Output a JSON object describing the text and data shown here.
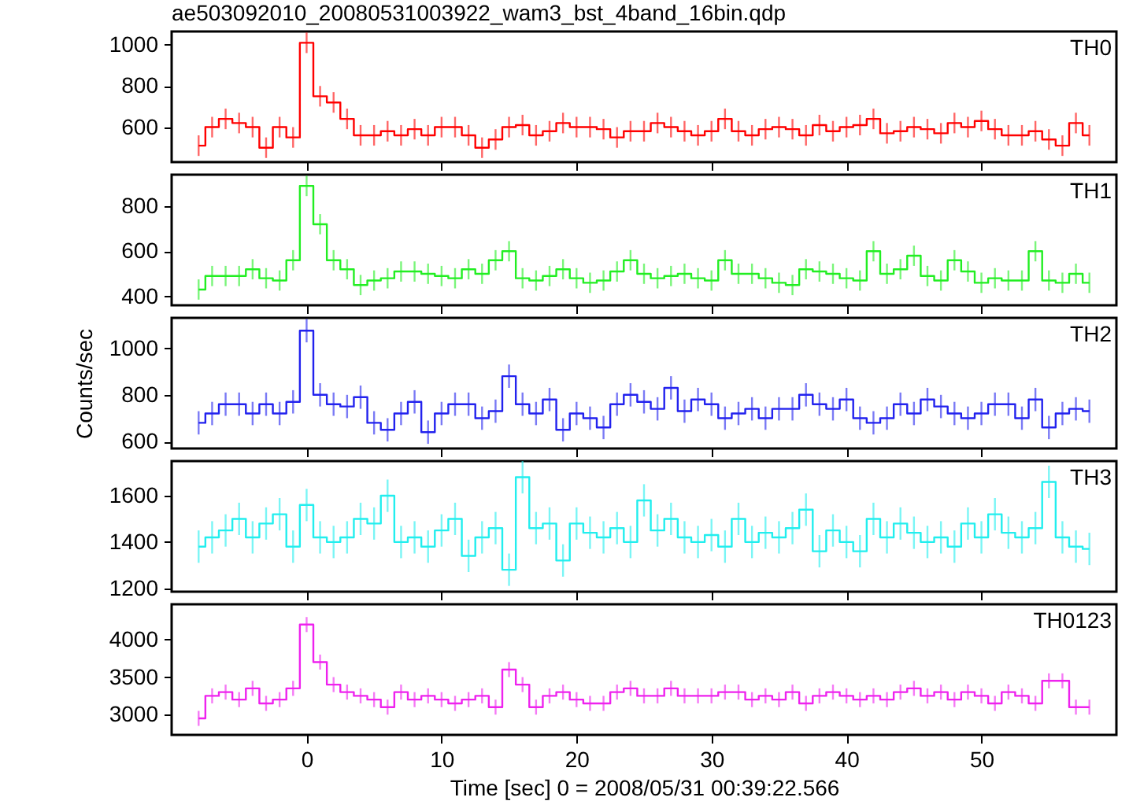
{
  "chart_data": [
    {
      "type": "step",
      "title": "ae503092010_20080531003922_wam3_bst_4band_16bin.qdp",
      "annotations": [
        "TH0"
      ],
      "tick_labels": "y",
      "grid": false,
      "xlim": [
        -10,
        60
      ],
      "xticks": [
        0,
        10,
        20,
        30,
        40,
        50
      ],
      "ylim": [
        430,
        1065
      ],
      "yticks": [
        600,
        800,
        1000
      ],
      "x": [
        -8,
        -7,
        -6,
        -5,
        -4,
        -3,
        -2,
        -1,
        0,
        1,
        2,
        3,
        4,
        5,
        6,
        7,
        8,
        9,
        10,
        11,
        12,
        13,
        14,
        15,
        16,
        17,
        18,
        19,
        20,
        21,
        22,
        23,
        24,
        25,
        26,
        27,
        28,
        29,
        30,
        31,
        32,
        33,
        34,
        35,
        36,
        37,
        38,
        39,
        40,
        41,
        42,
        43,
        44,
        45,
        46,
        47,
        48,
        49,
        50,
        51,
        52,
        53,
        54,
        55,
        56,
        57,
        58
      ],
      "series": [
        {
          "color": "#ff0000",
          "values": [
            510,
            600,
            640,
            620,
            600,
            500,
            600,
            550,
            1010,
            750,
            720,
            640,
            560,
            560,
            580,
            560,
            590,
            560,
            600,
            600,
            560,
            500,
            540,
            600,
            610,
            560,
            580,
            620,
            600,
            600,
            590,
            550,
            580,
            580,
            620,
            600,
            580,
            560,
            580,
            640,
            580,
            560,
            590,
            600,
            590,
            560,
            610,
            580,
            600,
            610,
            640,
            570,
            580,
            600,
            590,
            570,
            620,
            600,
            630,
            590,
            560,
            560,
            580,
            540,
            510,
            620,
            560
          ],
          "errors": [
            50,
            50,
            50,
            50,
            50,
            50,
            50,
            50,
            50,
            50,
            50,
            50,
            50,
            50,
            50,
            50,
            50,
            50,
            50,
            50,
            50,
            50,
            50,
            50,
            50,
            50,
            50,
            50,
            50,
            50,
            50,
            50,
            50,
            50,
            50,
            50,
            50,
            50,
            50,
            50,
            50,
            50,
            50,
            50,
            50,
            50,
            50,
            50,
            50,
            50,
            50,
            50,
            50,
            50,
            50,
            50,
            50,
            50,
            50,
            50,
            50,
            50,
            50,
            50,
            50,
            50,
            50
          ]
        }
      ]
    },
    {
      "type": "step",
      "annotations": [
        "TH1"
      ],
      "tick_labels": "y",
      "grid": false,
      "xlim": [
        -10,
        60
      ],
      "xticks": [
        0,
        10,
        20,
        30,
        40,
        50
      ],
      "ylim": [
        360,
        940
      ],
      "yticks": [
        400,
        600,
        800
      ],
      "x": [
        -8,
        -7,
        -6,
        -5,
        -4,
        -3,
        -2,
        -1,
        0,
        1,
        2,
        3,
        4,
        5,
        6,
        7,
        8,
        9,
        10,
        11,
        12,
        13,
        14,
        15,
        16,
        17,
        18,
        19,
        20,
        21,
        22,
        23,
        24,
        25,
        26,
        27,
        28,
        29,
        30,
        31,
        32,
        33,
        34,
        35,
        36,
        37,
        38,
        39,
        40,
        41,
        42,
        43,
        44,
        45,
        46,
        47,
        48,
        49,
        50,
        51,
        52,
        53,
        54,
        55,
        56,
        57,
        58
      ],
      "series": [
        {
          "color": "#22ee22",
          "values": [
            430,
            490,
            490,
            490,
            520,
            480,
            470,
            560,
            890,
            720,
            560,
            520,
            450,
            470,
            480,
            510,
            510,
            500,
            490,
            480,
            520,
            500,
            560,
            600,
            480,
            470,
            490,
            520,
            480,
            460,
            470,
            510,
            560,
            500,
            480,
            490,
            500,
            480,
            470,
            560,
            500,
            500,
            480,
            460,
            450,
            520,
            510,
            500,
            480,
            470,
            600,
            500,
            520,
            580,
            490,
            470,
            560,
            510,
            460,
            480,
            470,
            470,
            600,
            470,
            460,
            500,
            460
          ],
          "errors": [
            45,
            45,
            45,
            45,
            45,
            45,
            45,
            45,
            45,
            45,
            45,
            45,
            45,
            45,
            45,
            45,
            45,
            45,
            45,
            45,
            45,
            45,
            45,
            45,
            45,
            45,
            45,
            45,
            45,
            45,
            45,
            45,
            45,
            45,
            45,
            45,
            45,
            45,
            45,
            45,
            45,
            45,
            45,
            45,
            45,
            45,
            45,
            45,
            45,
            45,
            45,
            45,
            45,
            45,
            45,
            45,
            45,
            45,
            45,
            45,
            45,
            45,
            45,
            45,
            45,
            45,
            45
          ]
        }
      ]
    },
    {
      "type": "step",
      "annotations": [
        "TH2"
      ],
      "ylabel": "Counts/sec",
      "tick_labels": "y",
      "grid": false,
      "xlim": [
        -10,
        60
      ],
      "xticks": [
        0,
        10,
        20,
        30,
        40,
        50
      ],
      "ylim": [
        570,
        1130
      ],
      "yticks": [
        600,
        800,
        1000
      ],
      "x": [
        -8,
        -7,
        -6,
        -5,
        -4,
        -3,
        -2,
        -1,
        0,
        1,
        2,
        3,
        4,
        5,
        6,
        7,
        8,
        9,
        10,
        11,
        12,
        13,
        14,
        15,
        16,
        17,
        18,
        19,
        20,
        21,
        22,
        23,
        24,
        25,
        26,
        27,
        28,
        29,
        30,
        31,
        32,
        33,
        34,
        35,
        36,
        37,
        38,
        39,
        40,
        41,
        42,
        43,
        44,
        45,
        46,
        47,
        48,
        49,
        50,
        51,
        52,
        53,
        54,
        55,
        56,
        57,
        58
      ],
      "series": [
        {
          "color": "#2222ee",
          "values": [
            680,
            720,
            760,
            760,
            720,
            760,
            720,
            770,
            1075,
            800,
            760,
            750,
            790,
            680,
            650,
            720,
            770,
            640,
            720,
            760,
            760,
            700,
            730,
            880,
            760,
            720,
            780,
            650,
            720,
            700,
            660,
            760,
            800,
            770,
            740,
            830,
            730,
            780,
            760,
            700,
            720,
            740,
            700,
            740,
            740,
            800,
            760,
            740,
            780,
            700,
            680,
            700,
            760,
            720,
            780,
            750,
            720,
            700,
            720,
            760,
            760,
            700,
            780,
            660,
            720,
            740,
            730
          ],
          "errors": [
            50,
            50,
            50,
            50,
            50,
            50,
            50,
            50,
            50,
            50,
            50,
            50,
            50,
            50,
            50,
            50,
            50,
            50,
            50,
            50,
            50,
            50,
            50,
            50,
            50,
            50,
            50,
            50,
            50,
            50,
            50,
            50,
            50,
            50,
            50,
            50,
            50,
            50,
            50,
            50,
            50,
            50,
            50,
            50,
            50,
            50,
            50,
            50,
            50,
            50,
            50,
            50,
            50,
            50,
            50,
            50,
            50,
            50,
            50,
            50,
            50,
            50,
            50,
            50,
            50,
            50,
            50
          ]
        }
      ]
    },
    {
      "type": "step",
      "annotations": [
        "TH3"
      ],
      "tick_labels": "y",
      "grid": false,
      "xlim": [
        -10,
        60
      ],
      "xticks": [
        0,
        10,
        20,
        30,
        40,
        50
      ],
      "ylim": [
        1185,
        1750
      ],
      "yticks": [
        1200,
        1400,
        1600
      ],
      "x": [
        -8,
        -7,
        -6,
        -5,
        -4,
        -3,
        -2,
        -1,
        0,
        1,
        2,
        3,
        4,
        5,
        6,
        7,
        8,
        9,
        10,
        11,
        12,
        13,
        14,
        15,
        16,
        17,
        18,
        19,
        20,
        21,
        22,
        23,
        24,
        25,
        26,
        27,
        28,
        29,
        30,
        31,
        32,
        33,
        34,
        35,
        36,
        37,
        38,
        39,
        40,
        41,
        42,
        43,
        44,
        45,
        46,
        47,
        48,
        49,
        50,
        51,
        52,
        53,
        54,
        55,
        56,
        57,
        58
      ],
      "series": [
        {
          "color": "#22eeee",
          "values": [
            1380,
            1420,
            1450,
            1500,
            1420,
            1480,
            1520,
            1380,
            1560,
            1420,
            1400,
            1420,
            1500,
            1480,
            1600,
            1400,
            1420,
            1380,
            1450,
            1500,
            1340,
            1420,
            1460,
            1280,
            1680,
            1460,
            1480,
            1320,
            1480,
            1440,
            1420,
            1460,
            1400,
            1580,
            1450,
            1500,
            1420,
            1400,
            1430,
            1380,
            1500,
            1400,
            1440,
            1420,
            1460,
            1540,
            1360,
            1450,
            1400,
            1360,
            1500,
            1420,
            1480,
            1440,
            1400,
            1420,
            1380,
            1480,
            1420,
            1520,
            1440,
            1420,
            1460,
            1660,
            1420,
            1380,
            1370
          ],
          "errors": [
            70,
            70,
            70,
            70,
            70,
            70,
            70,
            70,
            70,
            70,
            70,
            70,
            70,
            70,
            70,
            70,
            70,
            70,
            70,
            70,
            70,
            70,
            70,
            70,
            70,
            70,
            70,
            70,
            70,
            70,
            70,
            70,
            70,
            70,
            70,
            70,
            70,
            70,
            70,
            70,
            70,
            70,
            70,
            70,
            70,
            70,
            70,
            70,
            70,
            70,
            70,
            70,
            70,
            70,
            70,
            70,
            70,
            70,
            70,
            70,
            70,
            70,
            70,
            70,
            70,
            70,
            70
          ]
        }
      ]
    },
    {
      "type": "step",
      "annotations": [
        "TH0123"
      ],
      "xlabel": "Time [sec] 0 = 2008/05/31 00:39:22.566",
      "grid": false,
      "xlim": [
        -10,
        60
      ],
      "xticks": [
        0,
        10,
        20,
        30,
        40,
        50
      ],
      "ylim": [
        2730,
        4470
      ],
      "yticks": [
        3000,
        3500,
        4000
      ],
      "x": [
        -8,
        -7,
        -6,
        -5,
        -4,
        -3,
        -2,
        -1,
        0,
        1,
        2,
        3,
        4,
        5,
        6,
        7,
        8,
        9,
        10,
        11,
        12,
        13,
        14,
        15,
        16,
        17,
        18,
        19,
        20,
        21,
        22,
        23,
        24,
        25,
        26,
        27,
        28,
        29,
        30,
        31,
        32,
        33,
        34,
        35,
        36,
        37,
        38,
        39,
        40,
        41,
        42,
        43,
        44,
        45,
        46,
        47,
        48,
        49,
        50,
        51,
        52,
        53,
        54,
        55,
        56,
        57,
        58
      ],
      "series": [
        {
          "color": "#ee22ee",
          "values": [
            2950,
            3250,
            3300,
            3200,
            3350,
            3150,
            3200,
            3350,
            4200,
            3700,
            3400,
            3300,
            3250,
            3200,
            3100,
            3300,
            3200,
            3250,
            3200,
            3150,
            3200,
            3250,
            3100,
            3600,
            3400,
            3100,
            3250,
            3300,
            3200,
            3150,
            3150,
            3300,
            3350,
            3250,
            3250,
            3350,
            3250,
            3250,
            3250,
            3300,
            3300,
            3200,
            3250,
            3200,
            3300,
            3150,
            3250,
            3300,
            3250,
            3200,
            3250,
            3200,
            3300,
            3350,
            3250,
            3300,
            3200,
            3300,
            3250,
            3150,
            3300,
            3250,
            3150,
            3450,
            3450,
            3100,
            3100
          ],
          "errors": [
            100,
            100,
            100,
            100,
            100,
            100,
            100,
            100,
            100,
            100,
            100,
            100,
            100,
            100,
            100,
            100,
            100,
            100,
            100,
            100,
            100,
            100,
            100,
            100,
            100,
            100,
            100,
            100,
            100,
            100,
            100,
            100,
            100,
            100,
            100,
            100,
            100,
            100,
            100,
            100,
            100,
            100,
            100,
            100,
            100,
            100,
            100,
            100,
            100,
            100,
            100,
            100,
            100,
            100,
            100,
            100,
            100,
            100,
            100,
            100,
            100,
            100,
            100,
            100,
            100,
            100,
            100
          ]
        }
      ]
    }
  ]
}
